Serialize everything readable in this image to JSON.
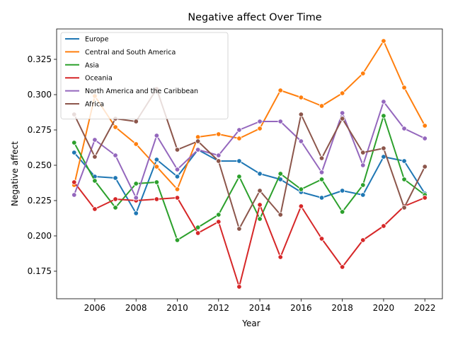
{
  "chart_data": {
    "type": "line",
    "title": "Negative affect Over Time",
    "xlabel": "Year",
    "ylabel": "Negative affect",
    "xlim": [
      2004.15,
      2022.85
    ],
    "ylim": [
      0.1555,
      0.3465
    ],
    "xticks": [
      2006,
      2008,
      2010,
      2012,
      2014,
      2016,
      2018,
      2020,
      2022
    ],
    "xtick_labels": [
      "2006",
      "2008",
      "2010",
      "2012",
      "2014",
      "2016",
      "2018",
      "2020",
      "2022"
    ],
    "yticks": [
      0.175,
      0.2,
      0.225,
      0.25,
      0.275,
      0.3,
      0.325
    ],
    "ytick_labels": [
      "0.175",
      "0.200",
      "0.225",
      "0.250",
      "0.275",
      "0.300",
      "0.325"
    ],
    "grid": false,
    "legend_position": "top-left",
    "x": [
      2005,
      2006,
      2007,
      2008,
      2009,
      2010,
      2011,
      2012,
      2013,
      2014,
      2015,
      2016,
      2017,
      2018,
      2019,
      2020,
      2021,
      2022
    ],
    "series": [
      {
        "name": "Europe",
        "color": "#1f77b4",
        "values": [
          0.259,
          0.242,
          0.241,
          0.216,
          0.254,
          0.242,
          0.261,
          0.253,
          0.253,
          0.244,
          0.24,
          0.231,
          0.227,
          0.232,
          0.229,
          0.256,
          0.253,
          0.23
        ]
      },
      {
        "name": "Central and South America",
        "color": "#ff7f0e",
        "values": [
          0.236,
          0.299,
          0.277,
          0.265,
          0.249,
          0.233,
          0.27,
          0.272,
          0.269,
          0.276,
          0.303,
          0.298,
          0.292,
          0.301,
          0.315,
          0.338,
          0.305,
          0.278
        ]
      },
      {
        "name": "Asia",
        "color": "#2ca02c",
        "values": [
          0.266,
          0.239,
          0.22,
          0.237,
          0.238,
          0.197,
          0.206,
          0.215,
          0.242,
          0.212,
          0.244,
          0.233,
          0.24,
          0.217,
          0.236,
          0.285,
          0.24,
          0.229
        ]
      },
      {
        "name": "Oceania",
        "color": "#d62728",
        "values": [
          0.238,
          0.219,
          0.226,
          0.225,
          0.226,
          0.227,
          0.202,
          0.21,
          0.164,
          0.222,
          0.185,
          0.221,
          0.198,
          0.178,
          0.197,
          0.207,
          0.221,
          0.227
        ]
      },
      {
        "name": "North America and the Caribbean",
        "color": "#9467bd",
        "values": [
          0.229,
          0.268,
          0.257,
          0.227,
          0.271,
          0.247,
          0.261,
          0.257,
          0.275,
          0.281,
          0.281,
          0.267,
          0.245,
          0.287,
          0.25,
          0.295,
          0.276,
          0.269
        ]
      },
      {
        "name": "Africa",
        "color": "#8c564b",
        "values": [
          0.286,
          0.256,
          0.283,
          0.281,
          0.304,
          0.261,
          0.267,
          0.253,
          0.205,
          0.232,
          0.215,
          0.286,
          0.255,
          0.283,
          0.259,
          0.262,
          0.22,
          0.249
        ]
      }
    ]
  }
}
